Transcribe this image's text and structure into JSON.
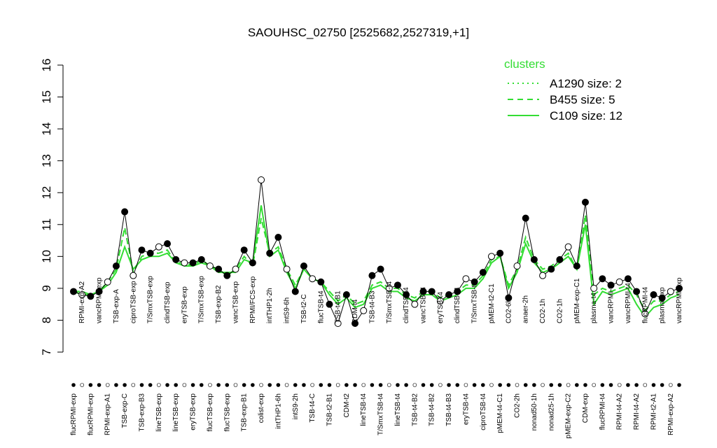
{
  "chart_data": {
    "type": "line",
    "title": "SAOUHSC_02750 [2525682,2527319,+1]",
    "categories": [
      "flucRPMI-exp",
      "RPMI-exp-A2",
      "flucRPMI-exp",
      "vancRPMI-exp",
      "RPMI-exp-A1",
      "TSB-exp-A",
      "TSB-exp-C",
      "ciproTSB-exp",
      "TSB-exp-B3",
      "T/SmxTSB-exp",
      "lineTSB-exp",
      "clindTSB-exp",
      "lineTSB-exp",
      "eryTSB-exp",
      "eryTSB-exp",
      "T/SmxTSB-exp",
      "flucTSB-exp",
      "TSB-exp-B2",
      "flucTSB-exp",
      "vancTSB-exp",
      "TSB-exp-B1",
      "RPMI/FCS-exp",
      "colist-exp",
      "intTHP1-2h",
      "intTHP1-6h",
      "intS9-6h",
      "intS9-2h",
      "TSB-t2-C",
      "TSB-t4-C",
      "flucTSB-t4",
      "TSB-t2-B1",
      "TSB-t4-B1",
      "CDM-t2",
      "CDM-t4",
      "lineTSB-t4",
      "TSB-t4-B3",
      "T/SmxTSB-t4",
      "T/SmxTSB-t4",
      "lineTSB-t4",
      "clindTSB-t4",
      "TSB-t4-B2",
      "vancTSB-t4",
      "TSB-t4-B2",
      "eryTSB-t4",
      "TSB-t4-B3",
      "clindTSB-t4",
      "eryTSB-t4",
      "T/SmxTSB-t4",
      "ciproTSB-t4",
      "pMEM-t2-C1",
      "pMEM-t4-C1",
      "CO2-6h",
      "CO2-2h",
      "anaer-2h",
      "nonad50-1h",
      "CO2-1h",
      "nonad25-1h",
      "CO2-1h",
      "pMEM-exp-C2",
      "pMEM-exp-C1",
      "CDM-exp",
      "plasma-t4",
      "flucRPMI-t4",
      "vancRPMI-t4",
      "RPMI-t4-A2",
      "vancRPMI-t4",
      "RPMI-t4-A2",
      "flucRPMI-t4",
      "RPMI-t2-A1",
      "plasma-exp",
      "RPMI-exp-A2",
      "vancRPMI-exp"
    ],
    "values": [
      8.9,
      8.8,
      8.75,
      8.9,
      9.2,
      9.7,
      11.4,
      9.4,
      10.2,
      10.1,
      10.3,
      10.4,
      9.9,
      9.8,
      9.8,
      9.9,
      9.7,
      9.6,
      9.4,
      9.6,
      10.2,
      9.8,
      12.4,
      10.1,
      10.6,
      9.6,
      8.9,
      9.7,
      9.3,
      9.2,
      8.5,
      7.9,
      8.8,
      7.9,
      8.3,
      9.4,
      9.6,
      9.0,
      9.1,
      8.8,
      8.5,
      8.9,
      8.9,
      8.6,
      8.8,
      8.9,
      9.3,
      9.2,
      9.5,
      10.0,
      10.1,
      8.7,
      9.7,
      11.2,
      9.9,
      9.4,
      9.6,
      9.9,
      10.3,
      9.7,
      11.7,
      9.0,
      9.3,
      9.1,
      9.2,
      9.3,
      8.9,
      8.2,
      8.8,
      8.7,
      8.9,
      9.0
    ],
    "color": "#000000",
    "legend_title": "clusters",
    "series": [
      {
        "name": "A1290 size: 2",
        "color": "#33dd33",
        "dash": "dotted",
        "values": [
          8.9,
          8.9,
          8.8,
          8.9,
          9.2,
          9.6,
          10.9,
          9.5,
          10.0,
          10.1,
          10.1,
          10.2,
          9.8,
          9.8,
          9.7,
          9.9,
          9.7,
          9.6,
          9.4,
          9.6,
          10.0,
          9.7,
          11.2,
          10.1,
          10.3,
          9.6,
          9.1,
          9.6,
          9.3,
          9.2,
          8.9,
          8.6,
          8.8,
          8.5,
          8.6,
          9.1,
          9.2,
          9.0,
          9.0,
          8.8,
          8.7,
          8.9,
          8.9,
          8.7,
          8.8,
          8.9,
          9.1,
          9.1,
          9.4,
          9.9,
          10.0,
          9.1,
          9.6,
          10.6,
          9.9,
          9.6,
          9.7,
          9.9,
          10.1,
          9.6,
          11.3,
          8.8,
          9.0,
          8.9,
          9.0,
          9.1,
          8.8,
          8.3,
          8.6,
          8.6,
          8.8,
          8.9
        ]
      },
      {
        "name": "B455 size: 5",
        "color": "#33dd33",
        "dash": "dashed",
        "values": [
          8.9,
          8.9,
          8.8,
          8.9,
          9.2,
          9.6,
          10.9,
          9.5,
          10.0,
          10.1,
          10.1,
          10.2,
          9.8,
          9.8,
          9.7,
          9.9,
          9.7,
          9.6,
          9.4,
          9.6,
          10.0,
          9.7,
          11.2,
          10.1,
          10.3,
          9.6,
          9.1,
          9.6,
          9.3,
          9.2,
          8.9,
          8.6,
          8.8,
          8.5,
          8.6,
          9.1,
          9.2,
          9.0,
          9.0,
          8.8,
          8.7,
          8.9,
          8.9,
          8.7,
          8.8,
          8.9,
          9.1,
          9.1,
          9.4,
          9.9,
          10.0,
          9.1,
          9.6,
          10.6,
          9.9,
          9.6,
          9.7,
          9.9,
          10.1,
          9.6,
          11.3,
          8.8,
          9.0,
          8.9,
          9.0,
          9.1,
          8.8,
          8.3,
          8.6,
          8.6,
          8.8,
          8.9
        ]
      },
      {
        "name": "C109 size: 12",
        "color": "#33dd33",
        "dash": "solid",
        "values": [
          8.9,
          8.8,
          8.8,
          8.9,
          9.1,
          9.5,
          10.3,
          9.6,
          9.9,
          10.0,
          10.0,
          10.1,
          9.8,
          9.7,
          9.7,
          9.8,
          9.7,
          9.5,
          9.5,
          9.5,
          9.9,
          9.8,
          11.6,
          10.0,
          10.2,
          9.5,
          9.0,
          9.6,
          9.3,
          9.2,
          8.8,
          8.5,
          8.7,
          8.4,
          8.5,
          9.0,
          9.1,
          8.9,
          8.9,
          8.7,
          8.6,
          8.8,
          8.8,
          8.6,
          8.7,
          8.8,
          9.0,
          9.0,
          9.3,
          9.8,
          10.0,
          9.0,
          9.5,
          10.4,
          9.8,
          9.5,
          9.6,
          9.8,
          10.0,
          9.6,
          11.0,
          8.5,
          8.9,
          8.8,
          8.9,
          9.0,
          8.5,
          8.1,
          8.4,
          8.5,
          8.7,
          8.8
        ]
      }
    ],
    "ylim": [
      7,
      16
    ],
    "yticks": [
      7,
      8,
      9,
      10,
      11,
      12,
      13,
      14,
      15,
      16
    ]
  }
}
